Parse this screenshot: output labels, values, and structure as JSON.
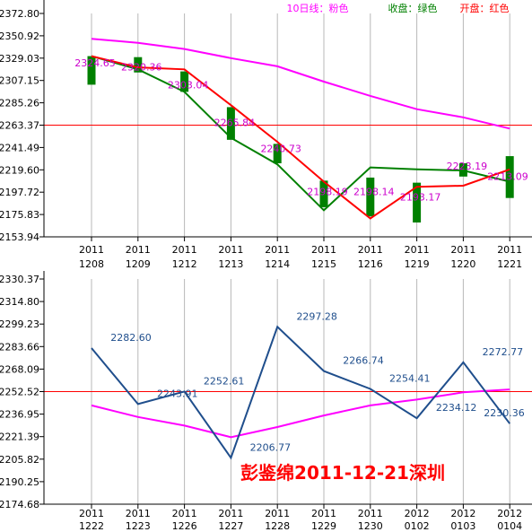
{
  "colors": {
    "background": "#ffffff",
    "axis": "#000000",
    "grid": "#b8b8b8",
    "ma10": "#ff00ff",
    "close": "#008000",
    "open": "#ff0000",
    "up_candle": "#ff0000",
    "down_candle": "#008000",
    "ref_line": "#ff0000",
    "top_value_label": "#cc00cc",
    "bottom_line": "#1f4e8c",
    "bottom_value_label": "#1f4e8c",
    "watermark": "#ff0000"
  },
  "legend": {
    "ma10": "10日线：粉色",
    "close": "收盘：绿色",
    "open": "开盘：红色"
  },
  "watermark": "彭鉴绵2011-12-21深圳",
  "chart_data": [
    {
      "type": "candlestick",
      "legend_placement": "top-right",
      "grid": true,
      "y_ticks": [
        "2372.80",
        "2350.92",
        "2329.03",
        "2307.15",
        "2285.26",
        "2263.37",
        "2241.49",
        "2219.60",
        "2197.72",
        "2175.83",
        "2153.94"
      ],
      "ylim": [
        2153.94,
        2372.8
      ],
      "categories": [
        [
          "2011",
          "1208"
        ],
        [
          "2011",
          "1209"
        ],
        [
          "2011",
          "1212"
        ],
        [
          "2011",
          "1213"
        ],
        [
          "2011",
          "1214"
        ],
        [
          "2011",
          "1215"
        ],
        [
          "2011",
          "1216"
        ],
        [
          "2011",
          "1219"
        ],
        [
          "2011",
          "1220"
        ],
        [
          "2011",
          "1221"
        ]
      ],
      "open": [
        2331,
        2330,
        2316,
        2281,
        2245,
        2209,
        2212,
        2207,
        2226,
        2233
      ],
      "close": [
        2303,
        2315,
        2296,
        2249,
        2226,
        2183,
        2174,
        2168,
        2213,
        2192
      ],
      "ma10": [
        2348,
        2344,
        2338,
        2329,
        2321,
        2306,
        2292,
        2279,
        2271,
        2260
      ],
      "close_line": [
        2331,
        2318,
        2296,
        2251,
        2225,
        2180,
        2222,
        2220,
        2219,
        2208
      ],
      "open_line": [
        2331,
        2320,
        2318,
        2283,
        2247,
        2208,
        2172,
        2203,
        2204,
        2220
      ],
      "value_labels": [
        "2324.65",
        "2320.36",
        "2303.04",
        "2265.84",
        "2240.73",
        "2198.19",
        "2198.14",
        "2193.17",
        "2223.19",
        "2213.09"
      ],
      "ref_value": 2263.37
    },
    {
      "type": "line",
      "grid": true,
      "y_ticks": [
        "2330.37",
        "2314.80",
        "2299.23",
        "2283.66",
        "2268.09",
        "2252.52",
        "2236.95",
        "2221.39",
        "2205.82",
        "2190.25",
        "2174.68"
      ],
      "ylim": [
        2174.68,
        2330.37
      ],
      "categories": [
        [
          "2011",
          "1222"
        ],
        [
          "2011",
          "1223"
        ],
        [
          "2011",
          "1226"
        ],
        [
          "2011",
          "1227"
        ],
        [
          "2011",
          "1228"
        ],
        [
          "2011",
          "1229"
        ],
        [
          "2011",
          "1230"
        ],
        [
          "2012",
          "0102"
        ],
        [
          "2012",
          "0103"
        ],
        [
          "2012",
          "0104"
        ]
      ],
      "values": [
        2282.6,
        2243.91,
        2252.61,
        2206.77,
        2297.28,
        2266.74,
        2254.41,
        2234.12,
        2272.77,
        2230.36
      ],
      "value_labels": [
        "2282.60",
        "2243.91",
        "2252.61",
        "2206.77",
        "2297.28",
        "2266.74",
        "2254.41",
        "2234.12",
        "2272.77",
        "2230.36"
      ],
      "ma10": [
        2243,
        2235,
        2229,
        2221,
        2228,
        2236,
        2243,
        2247,
        2252,
        2254
      ],
      "ref_value": 2252.52
    }
  ]
}
